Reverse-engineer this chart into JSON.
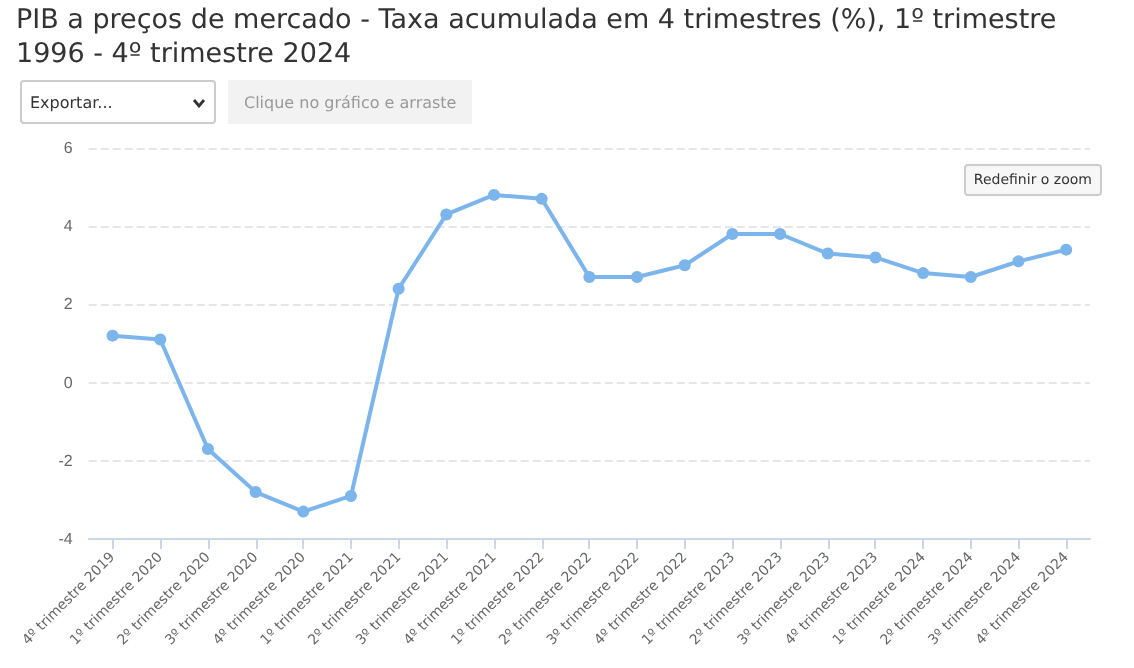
{
  "chart_data": {
    "type": "line",
    "title": "PIB a preços de mercado - Taxa acumulada em 4 trimestres (%), 1º trimestre 1996 - 4º trimestre 2024",
    "categories": [
      "4º trimestre 2019",
      "1º trimestre 2020",
      "2º trimestre 2020",
      "3º trimestre 2020",
      "4º trimestre 2020",
      "1º trimestre 2021",
      "2º trimestre 2021",
      "3º trimestre 2021",
      "4º trimestre 2021",
      "1º trimestre 2022",
      "2º trimestre 2022",
      "3º trimestre 2022",
      "4º trimestre 2022",
      "1º trimestre 2023",
      "2º trimestre 2023",
      "3º trimestre 2023",
      "4º trimestre 2023",
      "1º trimestre 2024",
      "2º trimestre 2024",
      "3º trimestre 2024",
      "4º trimestre 2024"
    ],
    "series": [
      {
        "color": "#7cb5ec",
        "values": [
          1.2,
          1.1,
          -1.7,
          -2.8,
          -3.3,
          -2.9,
          2.4,
          4.3,
          4.8,
          4.7,
          2.7,
          2.7,
          3.0,
          3.8,
          3.8,
          3.3,
          3.2,
          2.8,
          2.7,
          3.1,
          3.4
        ]
      }
    ],
    "ylim": [
      -4,
      6
    ],
    "yticks": [
      -4,
      -2,
      0,
      2,
      4,
      6
    ],
    "grid": "y",
    "marker": "circle",
    "line_style": "solid",
    "annotations": [
      "Exportar...",
      "Clique no gráfico e arraste",
      "Redefinir o zoom"
    ]
  }
}
